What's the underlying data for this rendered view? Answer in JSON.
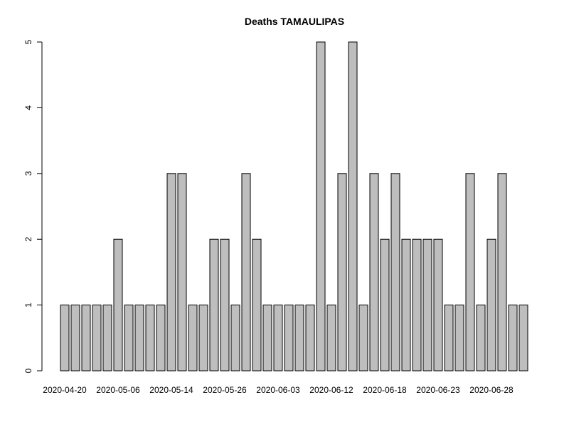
{
  "chart_data": {
    "type": "bar",
    "title": "Deaths TAMAULIPAS",
    "xlabel": "",
    "ylabel": "",
    "ylim": [
      0,
      5
    ],
    "y_ticks": [
      0,
      1,
      2,
      3,
      4,
      5
    ],
    "x_tick_labels": [
      {
        "index": 0,
        "label": "2020-04-20"
      },
      {
        "index": 5,
        "label": "2020-05-06"
      },
      {
        "index": 10,
        "label": "2020-05-14"
      },
      {
        "index": 15,
        "label": "2020-05-26"
      },
      {
        "index": 20,
        "label": "2020-06-03"
      },
      {
        "index": 25,
        "label": "2020-06-12"
      },
      {
        "index": 30,
        "label": "2020-06-18"
      },
      {
        "index": 35,
        "label": "2020-06-23"
      },
      {
        "index": 40,
        "label": "2020-06-28"
      }
    ],
    "values": [
      1,
      1,
      1,
      1,
      1,
      2,
      1,
      1,
      1,
      1,
      3,
      3,
      1,
      1,
      2,
      2,
      1,
      3,
      2,
      1,
      1,
      1,
      1,
      1,
      5,
      1,
      3,
      5,
      1,
      3,
      2,
      3,
      2,
      2,
      2,
      2,
      1,
      1,
      3,
      1,
      2,
      3,
      1,
      1
    ],
    "bar_color": "#bebebe",
    "bar_border": "#000000",
    "grid": false
  }
}
